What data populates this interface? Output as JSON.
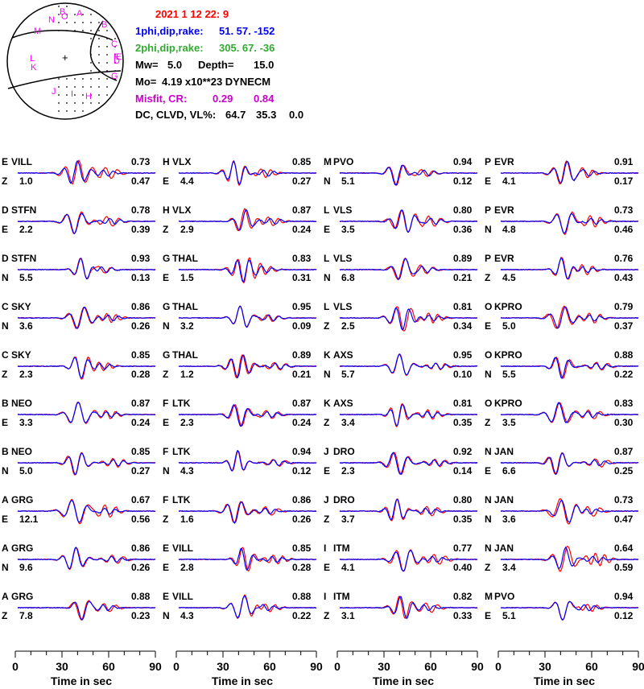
{
  "header": {
    "datetime": "2021  1 12   22: 9",
    "plane1_label": "1phi,dip,rake:",
    "plane1_values": "51. 57. -152",
    "plane2_label": "2phi,dip,rake:",
    "plane2_values": "305. 67.  -36",
    "mw_label": "Mw=",
    "mw_value": "5.0",
    "depth_label": "Depth=",
    "depth_value": "15.0",
    "mo_label": "Mo=",
    "mo_value": "4.19 x10**23 DYNECM",
    "misfit_label": "Misfit,  CR:",
    "misfit_value": "0.29",
    "cr_value": "0.84",
    "dc_label": "DC, CLVD, VL%:",
    "dc_value": "64.7",
    "clvd_value": "35.3",
    "vl_value": "0.0"
  },
  "colors": {
    "observed": "#ff0000",
    "synthetic": "#0000ff",
    "header_red": "#ff0000",
    "header_blue": "#0000ff",
    "header_green": "#33aa33",
    "magenta": "#cc00cc"
  },
  "beachball": {
    "station_letters": [
      "N",
      "B",
      "O",
      "A",
      "M",
      "B",
      "C",
      "F",
      "E",
      "D",
      "G",
      "L",
      "K",
      "J",
      "I",
      "H"
    ]
  },
  "chart_data": {
    "type": "line",
    "xlabel": "Time  in sec",
    "xticks": [
      "0",
      "30",
      "60",
      "90"
    ],
    "xlim": [
      0,
      90
    ],
    "legend": {
      "observed": "red",
      "synthetic": "blue"
    },
    "columns": [
      {
        "traces": [
          {
            "code": "E",
            "station": "VILL",
            "comp": "Z",
            "shift": "1.0",
            "cc": "0.73",
            "ratio": "0.47"
          },
          {
            "code": "D",
            "station": "STFN",
            "comp": "E",
            "shift": "2.2",
            "cc": "0.78",
            "ratio": "0.39"
          },
          {
            "code": "D",
            "station": "STFN",
            "comp": "N",
            "shift": "5.5",
            "cc": "0.93",
            "ratio": "0.13"
          },
          {
            "code": "C",
            "station": "SKY",
            "comp": "N",
            "shift": "3.6",
            "cc": "0.86",
            "ratio": "0.26"
          },
          {
            "code": "C",
            "station": "SKY",
            "comp": "Z",
            "shift": "2.3",
            "cc": "0.85",
            "ratio": "0.28"
          },
          {
            "code": "B",
            "station": "NEO",
            "comp": "E",
            "shift": "3.3",
            "cc": "0.87",
            "ratio": "0.24"
          },
          {
            "code": "B",
            "station": "NEO",
            "comp": "N",
            "shift": "5.0",
            "cc": "0.85",
            "ratio": "0.27"
          },
          {
            "code": "A",
            "station": "GRG",
            "comp": "E",
            "shift": "12.1",
            "cc": "0.67",
            "ratio": "0.56"
          },
          {
            "code": "A",
            "station": "GRG",
            "comp": "N",
            "shift": "9.6",
            "cc": "0.86",
            "ratio": "0.26"
          },
          {
            "code": "A",
            "station": "GRG",
            "comp": "Z",
            "shift": "7.8",
            "cc": "0.88",
            "ratio": "0.23"
          }
        ]
      },
      {
        "traces": [
          {
            "code": "H",
            "station": "VLX",
            "comp": "E",
            "shift": "4.4",
            "cc": "0.85",
            "ratio": "0.27"
          },
          {
            "code": "H",
            "station": "VLX",
            "comp": "Z",
            "shift": "2.9",
            "cc": "0.87",
            "ratio": "0.24"
          },
          {
            "code": "G",
            "station": "THAL",
            "comp": "E",
            "shift": "1.5",
            "cc": "0.83",
            "ratio": "0.31"
          },
          {
            "code": "G",
            "station": "THAL",
            "comp": "N",
            "shift": "3.2",
            "cc": "0.95",
            "ratio": "0.09"
          },
          {
            "code": "G",
            "station": "THAL",
            "comp": "Z",
            "shift": "1.2",
            "cc": "0.89",
            "ratio": "0.21"
          },
          {
            "code": "F",
            "station": "LTK",
            "comp": "E",
            "shift": "2.3",
            "cc": "0.87",
            "ratio": "0.24"
          },
          {
            "code": "F",
            "station": "LTK",
            "comp": "N",
            "shift": "4.3",
            "cc": "0.94",
            "ratio": "0.12"
          },
          {
            "code": "F",
            "station": "LTK",
            "comp": "Z",
            "shift": "1.6",
            "cc": "0.86",
            "ratio": "0.26"
          },
          {
            "code": "E",
            "station": "VILL",
            "comp": "E",
            "shift": "2.8",
            "cc": "0.85",
            "ratio": "0.28"
          },
          {
            "code": "E",
            "station": "VILL",
            "comp": "N",
            "shift": "4.3",
            "cc": "0.88",
            "ratio": "0.22"
          }
        ]
      },
      {
        "traces": [
          {
            "code": "M",
            "station": "PVO",
            "comp": "N",
            "shift": "5.1",
            "cc": "0.94",
            "ratio": "0.12"
          },
          {
            "code": "L",
            "station": "VLS",
            "comp": "E",
            "shift": "3.5",
            "cc": "0.80",
            "ratio": "0.36"
          },
          {
            "code": "L",
            "station": "VLS",
            "comp": "N",
            "shift": "6.8",
            "cc": "0.89",
            "ratio": "0.21"
          },
          {
            "code": "L",
            "station": "VLS",
            "comp": "Z",
            "shift": "2.5",
            "cc": "0.81",
            "ratio": "0.34"
          },
          {
            "code": "K",
            "station": "AXS",
            "comp": "N",
            "shift": "5.7",
            "cc": "0.95",
            "ratio": "0.10"
          },
          {
            "code": "K",
            "station": "AXS",
            "comp": "Z",
            "shift": "3.4",
            "cc": "0.81",
            "ratio": "0.35"
          },
          {
            "code": "J",
            "station": "DRO",
            "comp": "E",
            "shift": "2.3",
            "cc": "0.92",
            "ratio": "0.14"
          },
          {
            "code": "J",
            "station": "DRO",
            "comp": "Z",
            "shift": "3.7",
            "cc": "0.80",
            "ratio": "0.35"
          },
          {
            "code": "I",
            "station": "ITM",
            "comp": "E",
            "shift": "4.1",
            "cc": "0.77",
            "ratio": "0.40"
          },
          {
            "code": "I",
            "station": "ITM",
            "comp": "Z",
            "shift": "3.1",
            "cc": "0.82",
            "ratio": "0.33"
          }
        ]
      },
      {
        "traces": [
          {
            "code": "P",
            "station": "EVR",
            "comp": "E",
            "shift": "4.1",
            "cc": "0.91",
            "ratio": "0.17"
          },
          {
            "code": "P",
            "station": "EVR",
            "comp": "N",
            "shift": "4.8",
            "cc": "0.73",
            "ratio": "0.46"
          },
          {
            "code": "P",
            "station": "EVR",
            "comp": "Z",
            "shift": "4.5",
            "cc": "0.76",
            "ratio": "0.43"
          },
          {
            "code": "O",
            "station": "KPRO",
            "comp": "E",
            "shift": "5.0",
            "cc": "0.79",
            "ratio": "0.37"
          },
          {
            "code": "O",
            "station": "KPRO",
            "comp": "N",
            "shift": "5.5",
            "cc": "0.88",
            "ratio": "0.22"
          },
          {
            "code": "O",
            "station": "KPRO",
            "comp": "Z",
            "shift": "3.5",
            "cc": "0.83",
            "ratio": "0.30"
          },
          {
            "code": "N",
            "station": "JAN",
            "comp": "E",
            "shift": "6.6",
            "cc": "0.87",
            "ratio": "0.25"
          },
          {
            "code": "N",
            "station": "JAN",
            "comp": "N",
            "shift": "3.6",
            "cc": "0.73",
            "ratio": "0.47"
          },
          {
            "code": "N",
            "station": "JAN",
            "comp": "Z",
            "shift": "3.4",
            "cc": "0.64",
            "ratio": "0.59"
          },
          {
            "code": "M",
            "station": "PVO",
            "comp": "E",
            "shift": "5.1",
            "cc": "0.94",
            "ratio": "0.12"
          }
        ]
      }
    ]
  }
}
